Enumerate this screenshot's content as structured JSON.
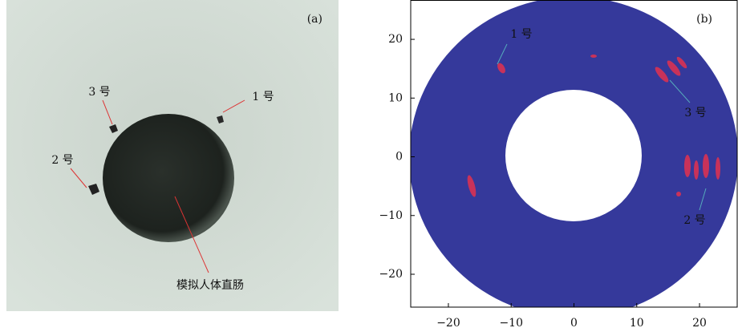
{
  "photo": {
    "label": "(a)",
    "annotations": [
      "3 号",
      "1 号",
      "2 号",
      "模拟人体直肠"
    ]
  },
  "chart_data": {
    "type": "contour",
    "label": "(b)",
    "annotations": [
      "1 号",
      "3 号",
      "2 号"
    ],
    "xlim": [
      -26,
      26
    ],
    "ylim": [
      -25.6,
      26.7
    ],
    "xticks": [
      {
        "value": -20,
        "label": "−20"
      },
      {
        "value": -10,
        "label": "−10"
      },
      0,
      10,
      20
    ],
    "yticks": [
      20,
      10,
      0,
      {
        "value": -10,
        "label": "−10"
      },
      {
        "value": -20,
        "label": "−20"
      }
    ],
    "color": "#35399b"
  }
}
